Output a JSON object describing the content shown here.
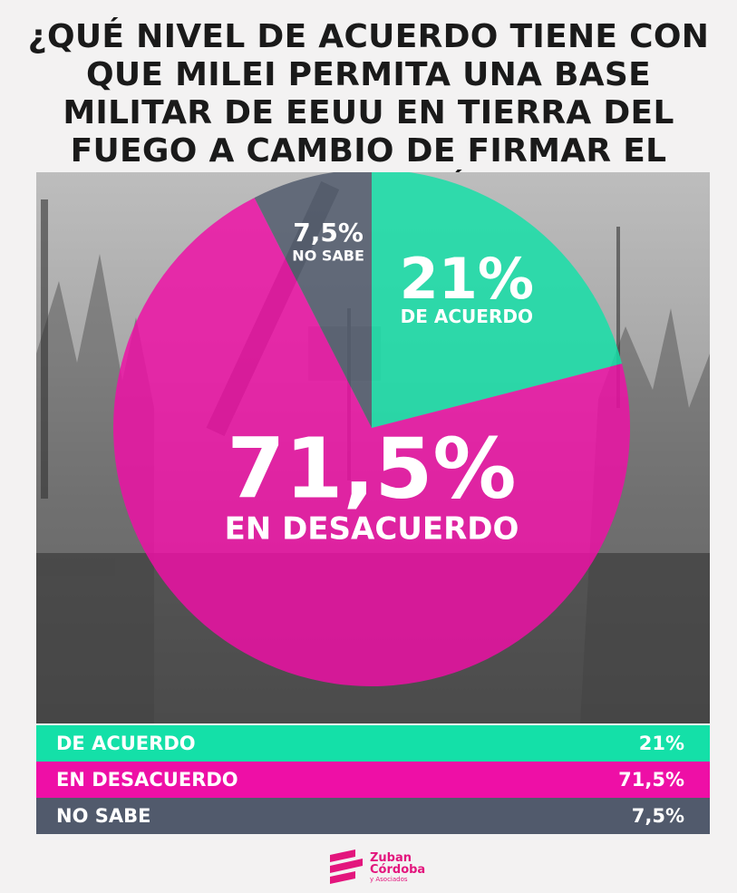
{
  "title": "¿QUÉ NIVEL DE ACUERDO TIENE CON QUE MILEI PERMITA UNA BASE MILITAR DE EEUU EN TIERRA DEL FUEGO A CAMBIO DE FIRMAR EL ACUERDO ECONÓMICO?",
  "colors": {
    "agree": "#14e0a8",
    "disagree": "#ee0fa6",
    "unknown": "#515a6c"
  },
  "chart_data": {
    "type": "pie",
    "slices": [
      {
        "category": "DE ACUERDO",
        "value": 21,
        "label": "21%",
        "color": "#14e0a8"
      },
      {
        "category": "EN DESACUERDO",
        "value": 71.5,
        "label": "71,5%",
        "color": "#ee0fa6"
      },
      {
        "category": "NO SABE",
        "value": 7.5,
        "label": "7,5%",
        "color": "#515a6c"
      }
    ]
  },
  "legend": [
    {
      "label": "DE ACUERDO",
      "value": "21%"
    },
    {
      "label": "EN DESACUERDO",
      "value": "71,5%"
    },
    {
      "label": "NO SABE",
      "value": "7,5%"
    }
  ],
  "logo": {
    "line1": "Zuban",
    "line2": "Córdoba",
    "line3": "y Asociados"
  }
}
